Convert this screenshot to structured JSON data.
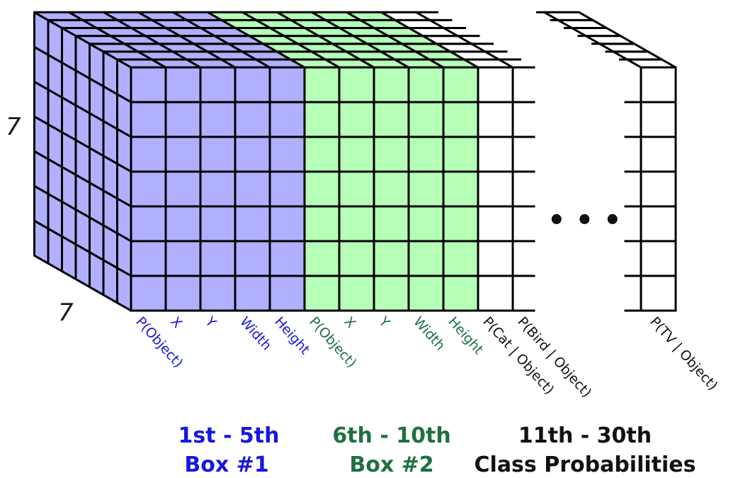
{
  "colors": {
    "box1_fill": "#b0b0ff",
    "box2_fill": "#b6ffb6",
    "class_fill": "#ffffff",
    "box1_text": "#1717e0",
    "box2_text": "#1d7040",
    "class_text": "#111111",
    "grid_line": "#000000"
  },
  "grid": {
    "rows": 7,
    "depth": 7,
    "dim_left_label": "7",
    "dim_bottom_label": "7",
    "ellipsis": "• • •"
  },
  "channel_labels": [
    {
      "text": "P(Object)",
      "group": "box1"
    },
    {
      "text": "X",
      "group": "box1"
    },
    {
      "text": "Y",
      "group": "box1"
    },
    {
      "text": "Width",
      "group": "box1"
    },
    {
      "text": "Height",
      "group": "box1"
    },
    {
      "text": "P(Object)",
      "group": "box2"
    },
    {
      "text": "X",
      "group": "box2"
    },
    {
      "text": "Y",
      "group": "box2"
    },
    {
      "text": "Width",
      "group": "box2"
    },
    {
      "text": "Height",
      "group": "box2"
    },
    {
      "text": "P(Cat | Object)",
      "group": "class"
    },
    {
      "text": "P(Bird | Object)",
      "group": "class"
    },
    {
      "text": "P(TV | Object)",
      "group": "class"
    }
  ],
  "legend": {
    "box1": {
      "range": "1st - 5th",
      "name": "Box #1"
    },
    "box2": {
      "range": "6th - 10th",
      "name": "Box #2"
    },
    "class": {
      "range": "11th - 30th",
      "name": "Class Probabilities"
    }
  }
}
